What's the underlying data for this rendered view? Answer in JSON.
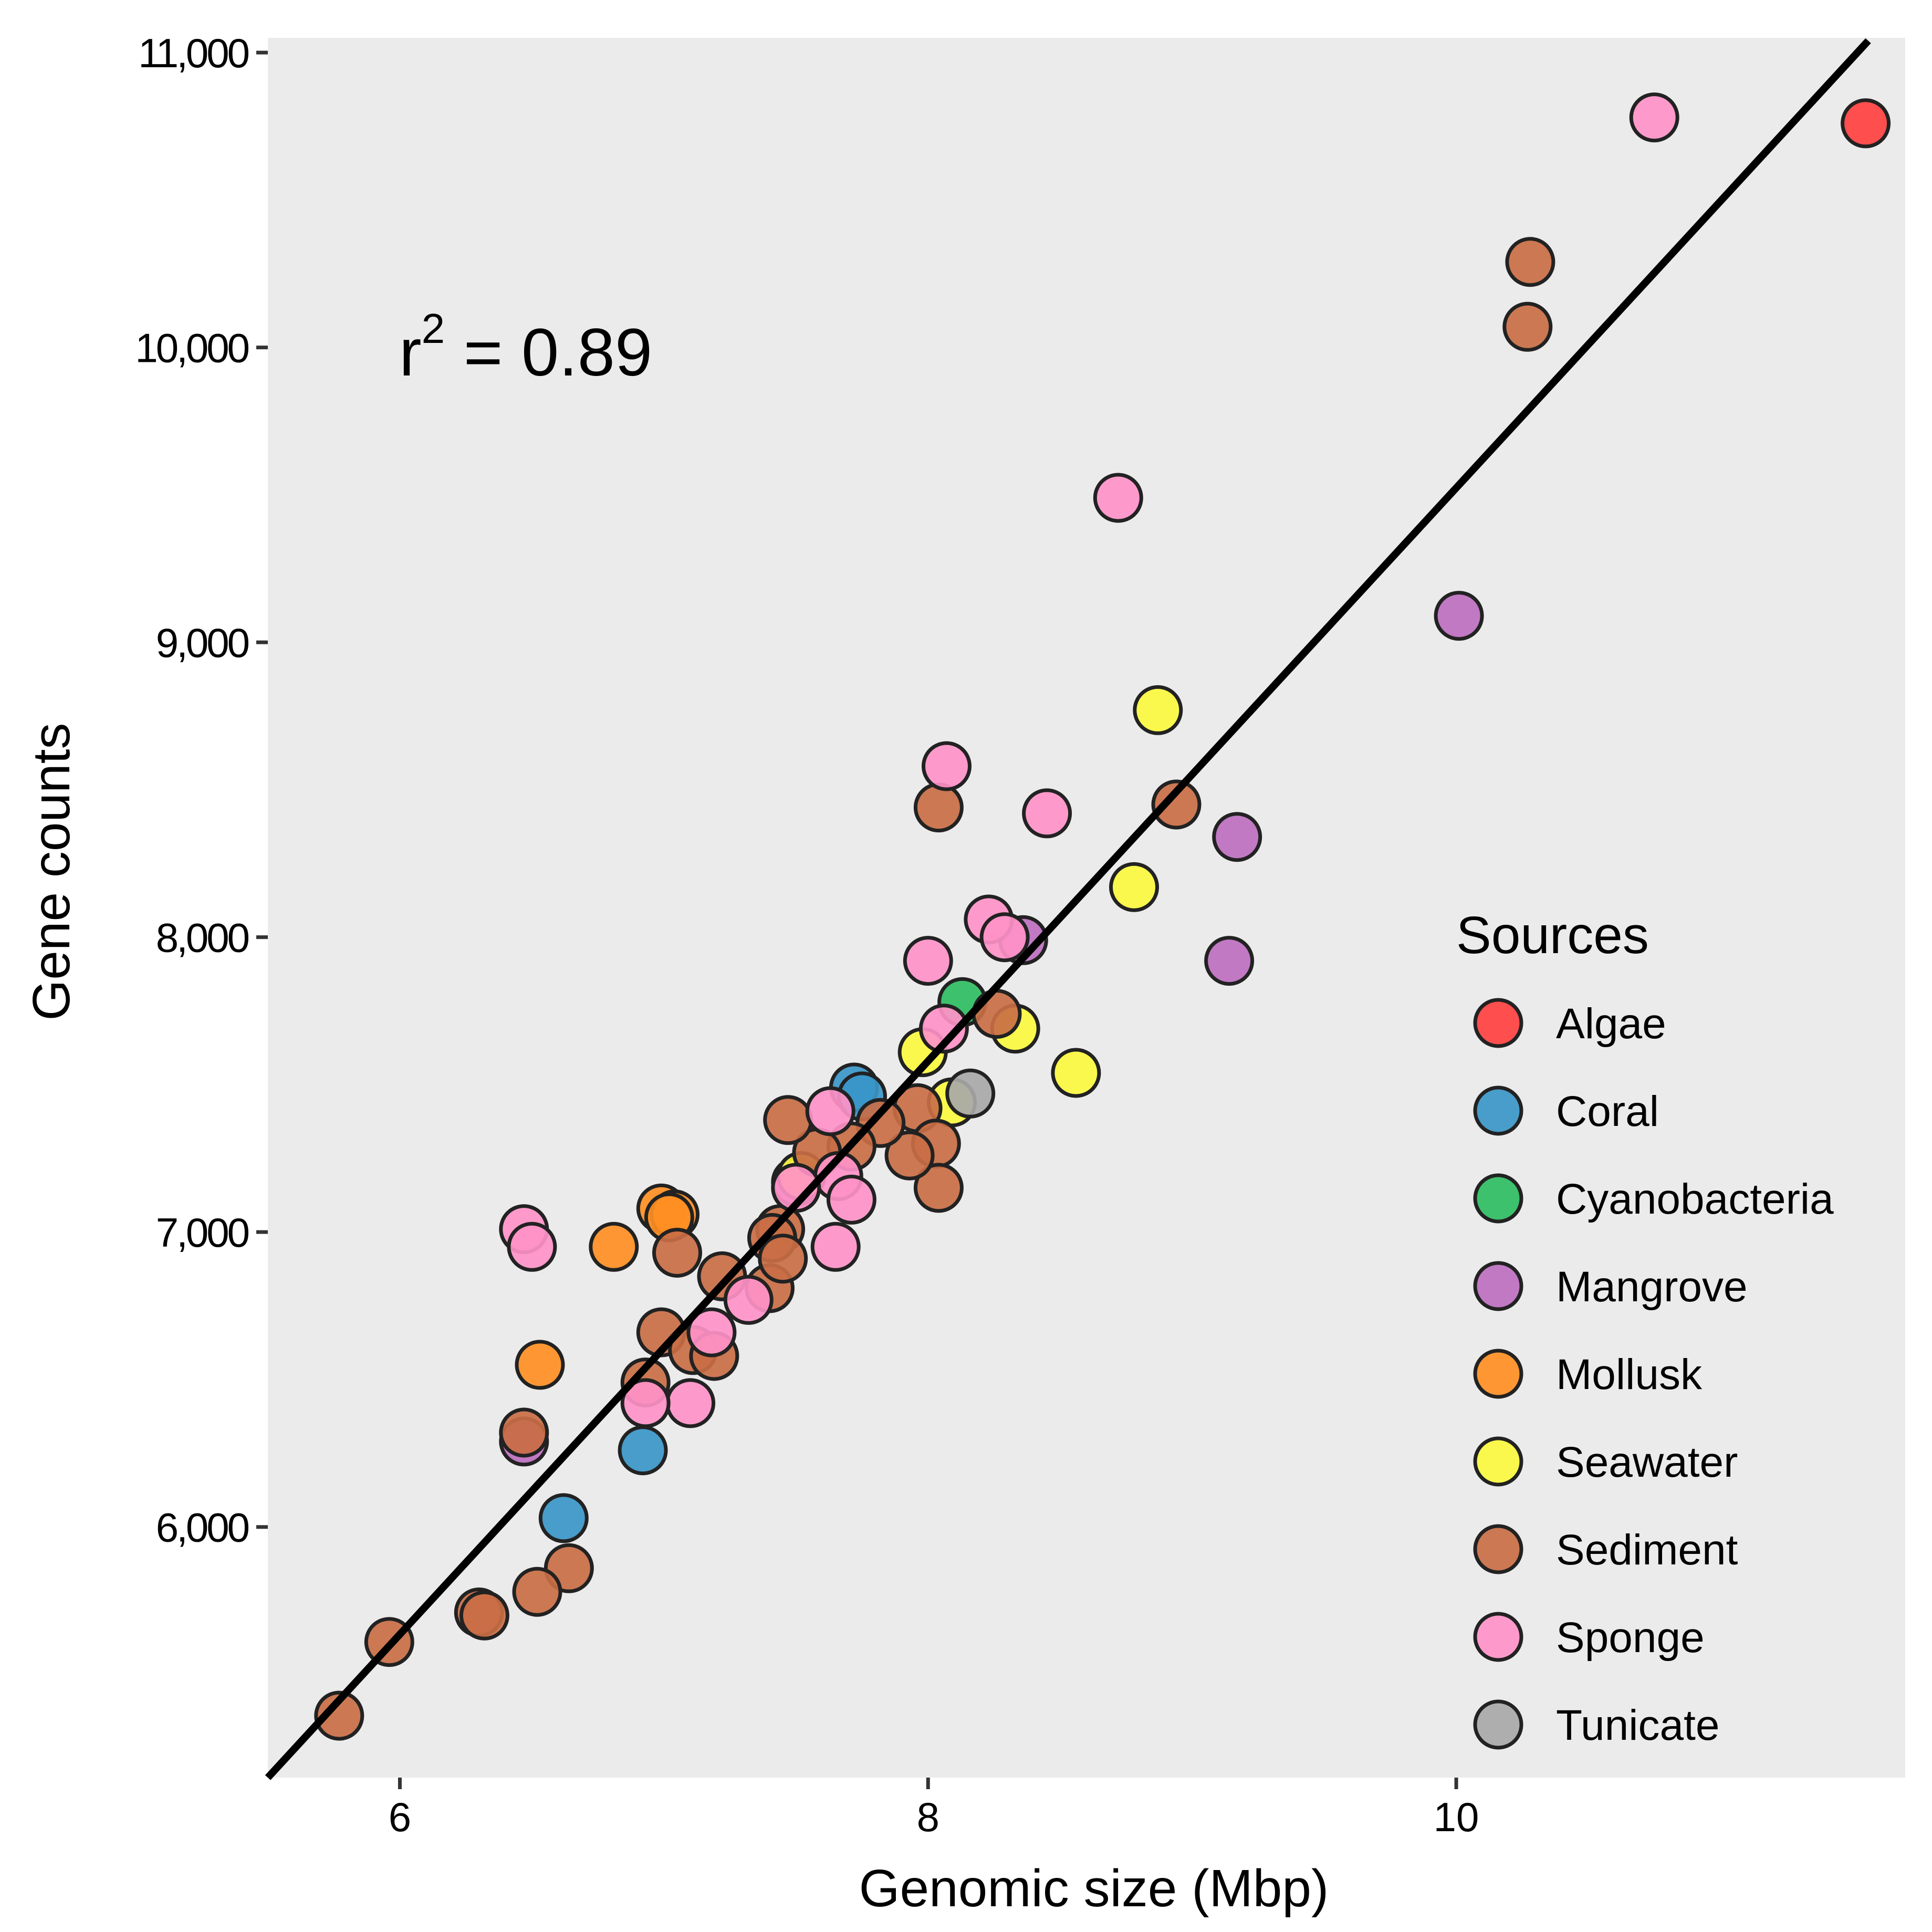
{
  "chart_data": {
    "type": "scatter",
    "title": "",
    "xlabel": "Genomic size (Mbp)",
    "ylabel": "Gene counts",
    "xlim": [
      5.5,
      11.7
    ],
    "ylim": [
      5150,
      11050
    ],
    "x_ticks": [
      6,
      8,
      10
    ],
    "x_tick_labels": [
      "6",
      "8",
      "10"
    ],
    "y_ticks": [
      6000,
      7000,
      8000,
      9000,
      10000,
      11000
    ],
    "y_tick_labels": [
      "6,000",
      "7,000",
      "8,000",
      "9,000",
      "10,000",
      "11,000"
    ],
    "annotation": {
      "base": "r",
      "superscript": "2",
      "rest": " = 0.89"
    },
    "regression_line": {
      "x": [
        5.5,
        11.56
      ],
      "y": [
        5150,
        11040
      ]
    },
    "legend": {
      "title": "Sources",
      "position": "right",
      "entries": [
        "Algae",
        "Coral",
        "Cyanobacteria",
        "Mangrove",
        "Mollusk",
        "Seawater",
        "Sediment",
        "Sponge",
        "Tunicate"
      ]
    },
    "colors": {
      "Algae": "#ff4040",
      "Coral": "#3a96c8",
      "Cyanobacteria": "#2ebd62",
      "Mangrove": "#bd6fbf",
      "Mollusk": "#ff8f23",
      "Seawater": "#fbf83f",
      "Sediment": "#c96e45",
      "Sponge": "#ff93c8",
      "Tunicate": "#a8a8a8"
    },
    "series": [
      {
        "name": "Algae",
        "points": [
          [
            11.55,
            10760
          ]
        ]
      },
      {
        "name": "Coral",
        "points": [
          [
            6.62,
            6030
          ],
          [
            6.92,
            6260
          ],
          [
            7.72,
            7490
          ],
          [
            7.75,
            7460
          ]
        ]
      },
      {
        "name": "Cyanobacteria",
        "points": [
          [
            8.13,
            7780
          ]
        ]
      },
      {
        "name": "Mangrove",
        "points": [
          [
            10.01,
            9090
          ],
          [
            9.17,
            8340
          ],
          [
            9.14,
            7920
          ],
          [
            8.36,
            7990
          ],
          [
            7.5,
            7170
          ],
          [
            6.47,
            6290
          ]
        ]
      },
      {
        "name": "Mollusk",
        "points": [
          [
            6.53,
            6550
          ],
          [
            6.81,
            6950
          ],
          [
            6.99,
            7080
          ],
          [
            7.04,
            7060
          ],
          [
            7.02,
            7050
          ]
        ]
      },
      {
        "name": "Seawater",
        "points": [
          [
            8.87,
            8770
          ],
          [
            8.78,
            8170
          ],
          [
            8.56,
            7540
          ],
          [
            8.33,
            7690
          ],
          [
            7.98,
            7610
          ],
          [
            8.09,
            7440
          ],
          [
            7.52,
            7190
          ]
        ]
      },
      {
        "name": "Sediment",
        "points": [
          [
            10.28,
            10290
          ],
          [
            10.27,
            10070
          ],
          [
            8.94,
            8450
          ],
          [
            8.04,
            8440
          ],
          [
            8.26,
            7740
          ],
          [
            7.96,
            7420
          ],
          [
            8.03,
            7300
          ],
          [
            8.04,
            7150
          ],
          [
            7.93,
            7260
          ],
          [
            7.82,
            7370
          ],
          [
            7.71,
            7290
          ],
          [
            7.58,
            7270
          ],
          [
            7.47,
            7380
          ],
          [
            7.44,
            7010
          ],
          [
            7.41,
            6980
          ],
          [
            7.4,
            6810
          ],
          [
            7.45,
            6910
          ],
          [
            7.22,
            6850
          ],
          [
            7.05,
            6930
          ],
          [
            6.99,
            6660
          ],
          [
            7.11,
            6600
          ],
          [
            7.19,
            6580
          ],
          [
            6.93,
            6490
          ],
          [
            6.47,
            6320
          ],
          [
            6.64,
            5860
          ],
          [
            6.52,
            5780
          ],
          [
            6.3,
            5710
          ],
          [
            6.32,
            5700
          ],
          [
            5.96,
            5610
          ],
          [
            5.77,
            5360
          ]
        ]
      },
      {
        "name": "Sponge",
        "points": [
          [
            10.75,
            10780
          ],
          [
            8.72,
            9490
          ],
          [
            8.07,
            8580
          ],
          [
            8.45,
            8420
          ],
          [
            8.23,
            8060
          ],
          [
            8.29,
            8000
          ],
          [
            8.0,
            7920
          ],
          [
            8.06,
            7690
          ],
          [
            7.63,
            7410
          ],
          [
            7.66,
            7190
          ],
          [
            7.71,
            7110
          ],
          [
            7.65,
            6950
          ],
          [
            7.5,
            7150
          ],
          [
            7.32,
            6770
          ],
          [
            7.18,
            6660
          ],
          [
            7.1,
            6420
          ],
          [
            6.93,
            6420
          ],
          [
            6.47,
            7010
          ],
          [
            6.5,
            6950
          ]
        ]
      },
      {
        "name": "Tunicate",
        "points": [
          [
            8.16,
            7470
          ]
        ]
      }
    ]
  }
}
